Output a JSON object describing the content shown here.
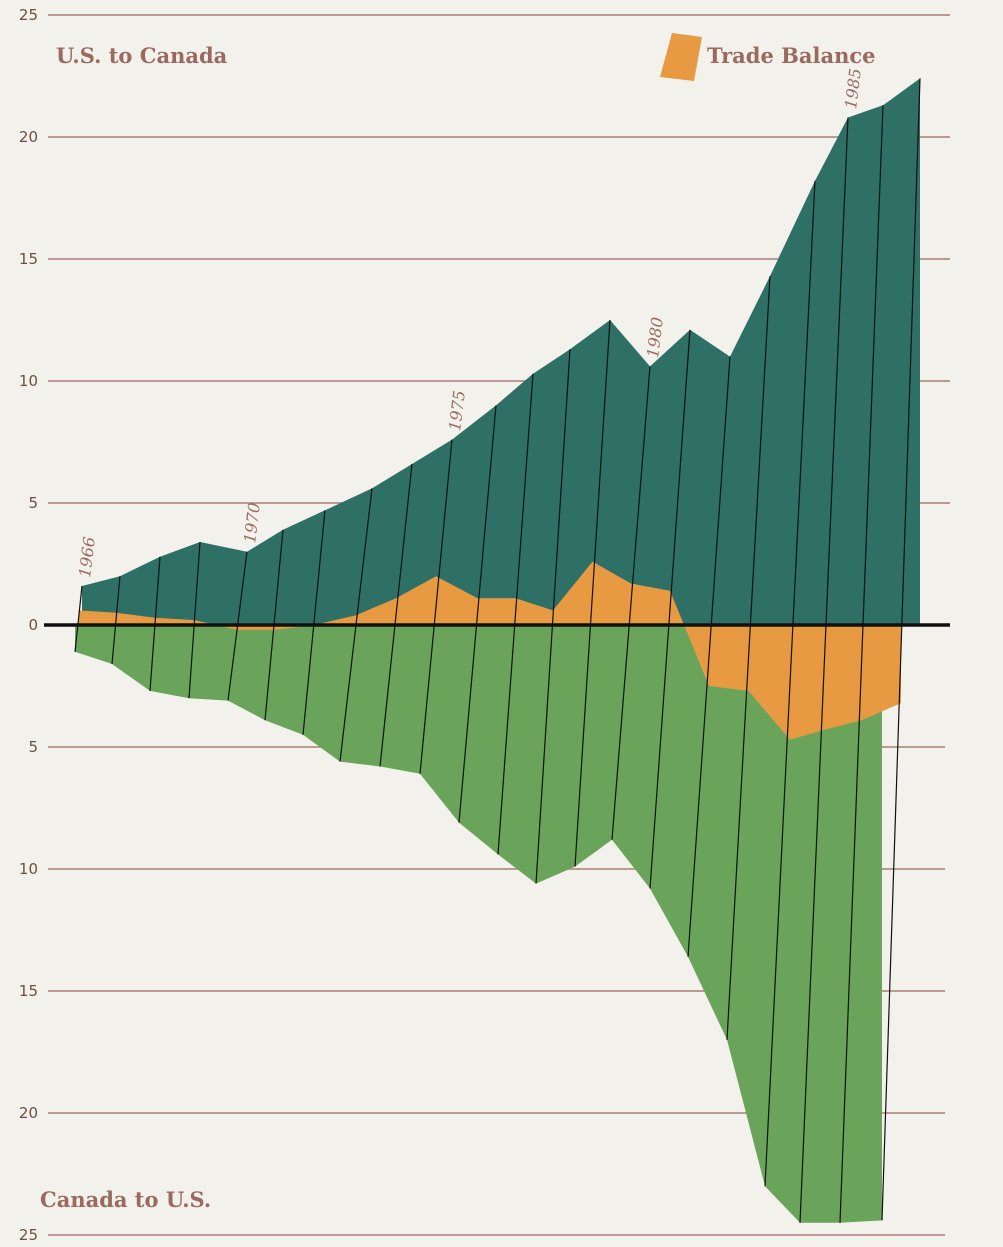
{
  "chart_data": {
    "type": "area",
    "series": [
      {
        "name": "U.S. to Canada",
        "color": "#2e7065",
        "values": [
          1.6,
          2.0,
          2.8,
          3.4,
          3.0,
          3.9,
          4.7,
          5.6,
          6.6,
          7.6,
          9.0,
          10.3,
          11.3,
          12.5,
          10.6,
          12.1,
          11.0,
          14.3,
          18.2,
          20.8,
          21.3,
          22.4
        ]
      },
      {
        "name": "Canada to U.S.",
        "color": "#69a45a",
        "values": [
          1.1,
          1.6,
          2.7,
          3.0,
          3.1,
          3.9,
          4.5,
          5.6,
          5.8,
          6.1,
          8.1,
          9.4,
          10.6,
          9.9,
          8.8,
          10.8,
          13.6,
          17.0,
          23.0,
          24.5,
          24.5,
          24.4
        ]
      },
      {
        "name": "Trade Balance",
        "color": "#e89a43",
        "values": [
          0.6,
          0.5,
          0.3,
          0.2,
          -0.2,
          -0.2,
          0.0,
          0.4,
          1.1,
          2.0,
          1.1,
          1.1,
          0.6,
          2.6,
          1.7,
          1.4,
          -2.5,
          -2.7,
          -4.7,
          -4.3,
          -3.9,
          -3.2
        ]
      }
    ],
    "year_labels": [
      "1966",
      "1970",
      "1975",
      "1980",
      "1985"
    ],
    "y_ticks_top": [
      "25",
      "20",
      "15",
      "10",
      "5",
      "0"
    ],
    "y_ticks_bottom": [
      "5",
      "10",
      "15",
      "20",
      "25"
    ],
    "label_top": "U.S. to Canada",
    "label_bottom": "Canada to U.S.",
    "legend": {
      "label": "Trade Balance",
      "color": "#e89a43",
      "position": "top-right"
    },
    "ylim": [
      -25,
      25
    ],
    "grid": true,
    "gridline_color": "#a87f76"
  }
}
